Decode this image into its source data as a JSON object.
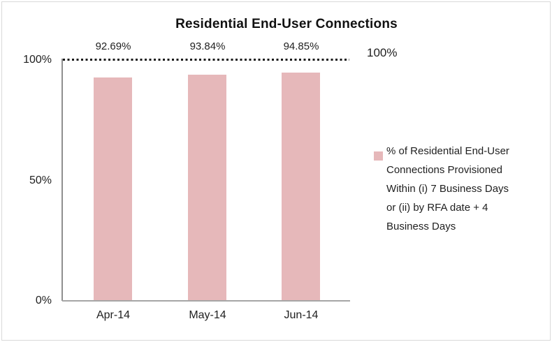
{
  "chart_data": {
    "type": "bar",
    "title": "Residential End-User Connections",
    "categories": [
      "Apr-14",
      "May-14",
      "Jun-14"
    ],
    "series": [
      {
        "name": "% of Residential End-User Connections Provisioned Within (i) 7 Business Days or (ii) by RFA date + 4 Business Days",
        "values": [
          92.69,
          93.84,
          94.85
        ]
      }
    ],
    "data_labels": [
      "92.69%",
      "93.84%",
      "94.85%"
    ],
    "yticks": [
      "100%",
      "50%",
      "0%"
    ],
    "ylim": [
      0,
      100
    ],
    "grid": false,
    "legend_position": "right",
    "legend_text_wrapped": "% of Residential End-User\nConnections Provisioned\nWithin (i) 7 Business Days\nor (ii) by RFA date + 4\nBusiness Days",
    "reference_line": {
      "value": 100,
      "label": "100%",
      "style": "dotted",
      "color": "#1a1a1a"
    },
    "colors": {
      "bar": "#e6b8ba",
      "axis": "#9d9d9d",
      "text": "#1f1f1f",
      "frame_border": "#d9d9d9"
    }
  }
}
